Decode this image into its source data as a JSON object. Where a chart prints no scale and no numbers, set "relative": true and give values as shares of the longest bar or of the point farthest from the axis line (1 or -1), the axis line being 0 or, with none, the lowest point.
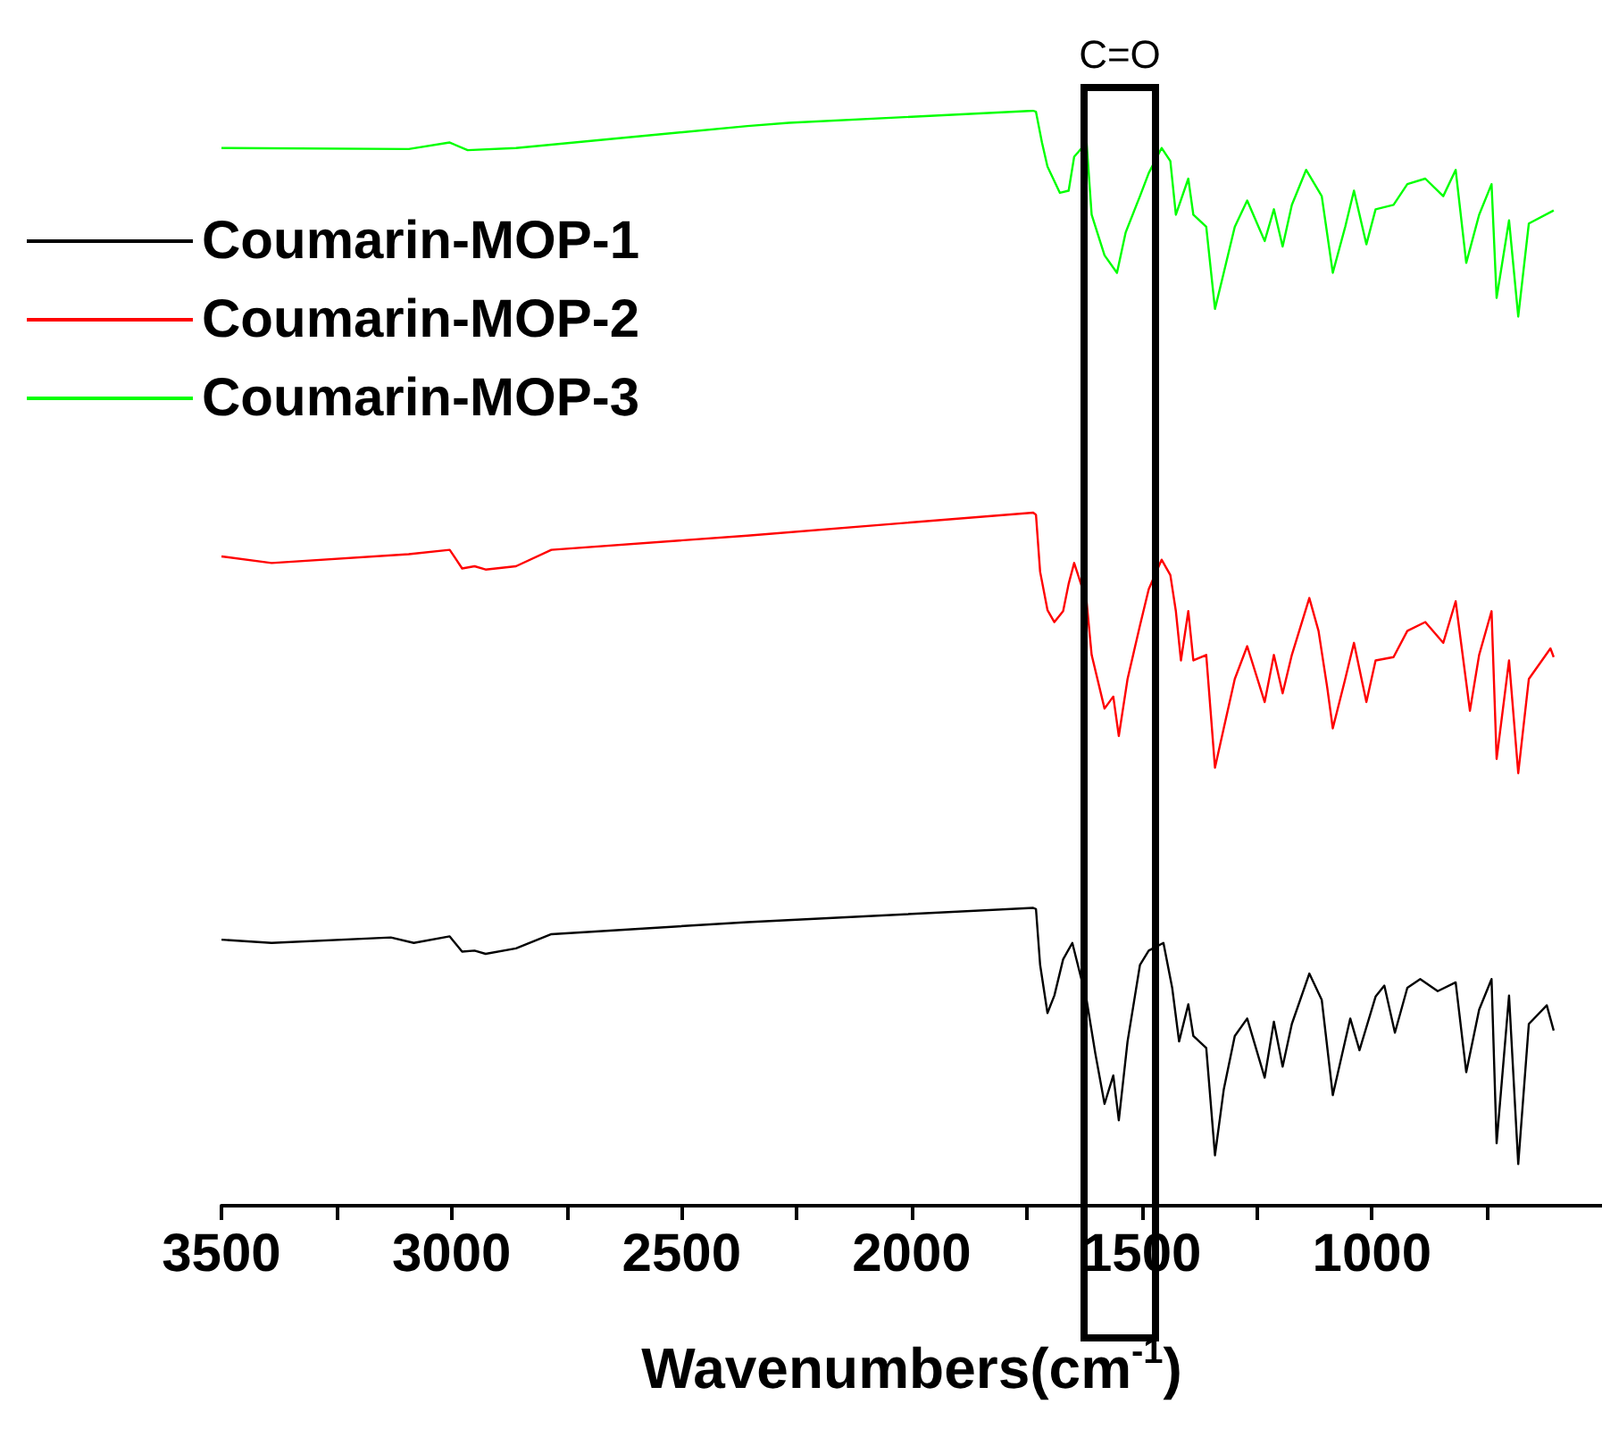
{
  "chart_data": {
    "type": "line",
    "relative": true,
    "xlabel": "Wavenumbers(cm$^{-1}$)",
    "xlim": [
      3500,
      500
    ],
    "xticks": [
      3500,
      {
        "value": 3250,
        "label": null
      },
      3000,
      {
        "value": 2750,
        "label": null
      },
      2500,
      {
        "value": 2250,
        "label": null
      },
      2000,
      {
        "value": 1750,
        "label": null
      },
      1500,
      {
        "value": 1250,
        "label": null
      },
      1000,
      {
        "value": 750,
        "label": null
      }
    ],
    "legend": "top left",
    "grid": false,
    "marker": "none",
    "line_style": "solid",
    "tick_labels": "x",
    "annotations": [
      "C=O"
    ],
    "series": [
      {
        "name": "Coumarin-MOP-1",
        "color": "#000000",
        "x": [
          3500,
          3391,
          3132,
          3082,
          3004,
          2977,
          2950,
          2926,
          2860,
          2783,
          2357,
          1736,
          1730,
          1721,
          1705,
          1690,
          1671,
          1651,
          1620,
          1601,
          1581,
          1562,
          1550,
          1531,
          1504,
          1485,
          1453,
          1434,
          1419,
          1399,
          1388,
          1360,
          1341,
          1322,
          1298,
          1271,
          1233,
          1213,
          1194,
          1174,
          1136,
          1109,
          1085,
          1047,
          1027,
          992,
          973,
          950,
          923,
          895,
          857,
          818,
          795,
          767,
          740,
          729,
          702,
          682,
          659,
          620,
          605
        ],
        "values": [
          0.243,
          0.24,
          0.245,
          0.24,
          0.246,
          0.232,
          0.233,
          0.23,
          0.235,
          0.248,
          0.259,
          0.272,
          0.271,
          0.22,
          0.176,
          0.192,
          0.225,
          0.24,
          0.188,
          0.139,
          0.093,
          0.119,
          0.078,
          0.15,
          0.22,
          0.233,
          0.24,
          0.199,
          0.15,
          0.184,
          0.155,
          0.144,
          0.046,
          0.106,
          0.155,
          0.171,
          0.117,
          0.168,
          0.127,
          0.166,
          0.212,
          0.188,
          0.101,
          0.171,
          0.142,
          0.191,
          0.201,
          0.158,
          0.199,
          0.207,
          0.196,
          0.204,
          0.122,
          0.179,
          0.207,
          0.057,
          0.192,
          0.038,
          0.166,
          0.183,
          0.16
        ]
      },
      {
        "name": "Coumarin-MOP-2",
        "color": "#ff0000",
        "x": [
          3500,
          3391,
          3093,
          3004,
          2977,
          2950,
          2926,
          2860,
          2783,
          2357,
          1736,
          1730,
          1721,
          1705,
          1690,
          1671,
          1659,
          1647,
          1620,
          1609,
          1581,
          1562,
          1550,
          1531,
          1504,
          1485,
          1457,
          1438,
          1426,
          1415,
          1399,
          1388,
          1360,
          1341,
          1322,
          1298,
          1271,
          1233,
          1213,
          1194,
          1174,
          1136,
          1116,
          1097,
          1085,
          1058,
          1039,
          1012,
          992,
          953,
          923,
          884,
          845,
          818,
          787,
          767,
          740,
          729,
          702,
          682,
          659,
          612,
          605
        ],
        "values": [
          0.593,
          0.587,
          0.595,
          0.599,
          0.582,
          0.584,
          0.581,
          0.584,
          0.599,
          0.612,
          0.633,
          0.631,
          0.579,
          0.544,
          0.533,
          0.543,
          0.568,
          0.587,
          0.552,
          0.503,
          0.454,
          0.465,
          0.429,
          0.481,
          0.53,
          0.563,
          0.59,
          0.576,
          0.543,
          0.498,
          0.543,
          0.498,
          0.503,
          0.4,
          0.436,
          0.481,
          0.511,
          0.46,
          0.503,
          0.468,
          0.503,
          0.555,
          0.525,
          0.473,
          0.436,
          0.481,
          0.514,
          0.46,
          0.498,
          0.501,
          0.525,
          0.533,
          0.514,
          0.552,
          0.452,
          0.503,
          0.543,
          0.408,
          0.498,
          0.395,
          0.481,
          0.509,
          0.501
        ]
      },
      {
        "name": "Coumarin-MOP-3",
        "color": "#00ff00",
        "x": [
          3500,
          3093,
          3004,
          2965,
          2860,
          2357,
          2267,
          1736,
          1730,
          1717,
          1705,
          1678,
          1659,
          1647,
          1620,
          1609,
          1581,
          1554,
          1535,
          1504,
          1485,
          1457,
          1438,
          1426,
          1399,
          1388,
          1360,
          1341,
          1322,
          1298,
          1271,
          1233,
          1213,
          1194,
          1174,
          1143,
          1109,
          1085,
          1058,
          1039,
          1012,
          992,
          953,
          923,
          884,
          845,
          818,
          795,
          767,
          740,
          729,
          702,
          682,
          659,
          605
        ],
        "values": [
          0.966,
          0.965,
          0.971,
          0.964,
          0.966,
          0.986,
          0.989,
          1.0,
          0.999,
          0.971,
          0.949,
          0.925,
          0.927,
          0.958,
          0.971,
          0.905,
          0.868,
          0.852,
          0.889,
          0.922,
          0.943,
          0.966,
          0.954,
          0.905,
          0.938,
          0.905,
          0.894,
          0.819,
          0.852,
          0.894,
          0.918,
          0.881,
          0.91,
          0.876,
          0.914,
          0.946,
          0.922,
          0.852,
          0.894,
          0.927,
          0.878,
          0.91,
          0.914,
          0.933,
          0.938,
          0.922,
          0.946,
          0.861,
          0.905,
          0.933,
          0.829,
          0.9,
          0.812,
          0.897,
          0.909
        ]
      }
    ]
  }
}
